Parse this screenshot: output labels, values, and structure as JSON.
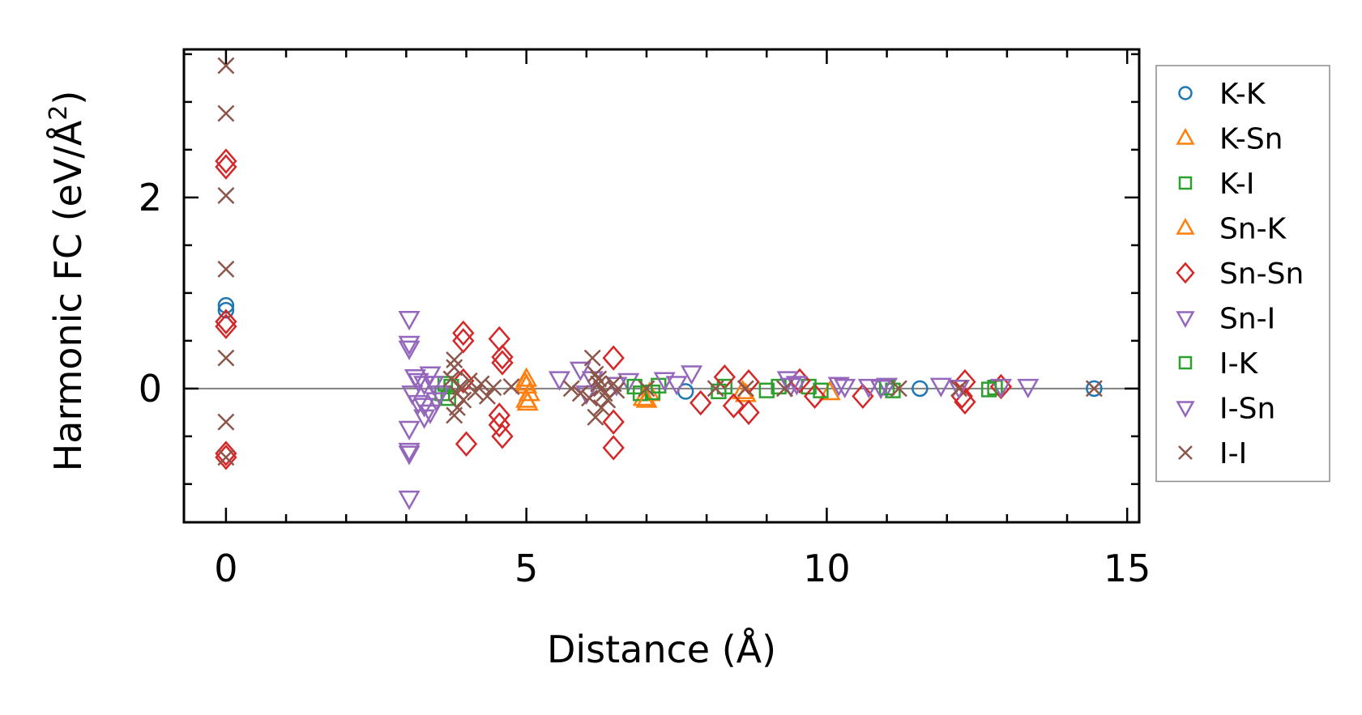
{
  "chart_data": {
    "type": "scatter",
    "title": "",
    "xlabel": "Distance (Å)",
    "ylabel_main": "Harmonic FC (eV/Å",
    "ylabel_sup": "2",
    "ylabel_close": ")",
    "xlim": [
      -0.7,
      15.2
    ],
    "ylim": [
      -1.4,
      3.55
    ],
    "xticks": [
      0,
      5,
      10,
      15
    ],
    "xtick_labels": [
      "0",
      "5",
      "10",
      "15"
    ],
    "yticks": [
      0,
      2
    ],
    "ytick_labels": [
      "0",
      "2"
    ],
    "x_minor_step": 1,
    "y_minor_step": 0.5,
    "zero_line": true,
    "legend_position": "outside-right",
    "series": [
      {
        "name": "K-K",
        "marker": "circle",
        "color": "#1f77b4",
        "x": [
          0,
          0,
          7.65,
          11.55,
          14.45
        ],
        "y": [
          0.87,
          0.82,
          -0.03,
          0.0,
          0.0
        ]
      },
      {
        "name": "K-Sn",
        "marker": "triangle-up",
        "color": "#ff7f0e",
        "x": [
          5.0,
          5.0,
          5.0,
          5.05,
          6.95,
          7.05,
          8.6
        ],
        "y": [
          0.1,
          0.03,
          -0.12,
          -0.05,
          -0.1,
          -0.05,
          -0.03
        ]
      },
      {
        "name": "K-I",
        "marker": "square",
        "color": "#2ca02c",
        "x": [
          3.65,
          3.7,
          6.9,
          7.2,
          8.3,
          9.0,
          9.7,
          11.1,
          12.8
        ],
        "y": [
          0.05,
          -0.1,
          -0.05,
          0.03,
          0.02,
          -0.02,
          0.02,
          -0.02,
          0.01
        ]
      },
      {
        "name": "Sn-K",
        "marker": "triangle-up",
        "color": "#ff7f0e",
        "x": [
          4.98,
          5.02,
          7.0,
          8.65,
          10.05
        ],
        "y": [
          0.06,
          -0.15,
          -0.12,
          -0.06,
          -0.04
        ]
      },
      {
        "name": "Sn-Sn",
        "marker": "diamond",
        "color": "#d62728",
        "x": [
          0,
          0,
          0,
          0,
          0,
          0,
          3.95,
          3.95,
          4.0,
          3.95,
          4.55,
          4.6,
          4.6,
          4.55,
          4.55,
          4.6,
          6.45,
          6.45,
          6.45,
          8.3,
          8.45,
          8.7,
          8.7,
          7.9,
          9.55,
          9.8,
          10.6,
          12.3,
          12.3,
          12.25,
          12.9
        ],
        "y": [
          2.38,
          2.32,
          0.7,
          0.65,
          -0.68,
          -0.72,
          0.58,
          0.5,
          -0.58,
          0.08,
          0.52,
          0.33,
          0.27,
          -0.28,
          -0.38,
          -0.5,
          0.32,
          -0.35,
          -0.62,
          0.12,
          -0.18,
          0.07,
          -0.25,
          -0.15,
          0.08,
          -0.08,
          -0.08,
          0.07,
          -0.14,
          -0.08,
          0.02
        ]
      },
      {
        "name": "Sn-I",
        "marker": "triangle-down",
        "color": "#9467bd",
        "x": [
          3.05,
          3.05,
          3.05,
          3.05,
          3.05,
          3.05,
          3.05,
          3.4,
          3.3,
          3.4,
          3.2,
          5.55,
          5.9,
          6.1,
          6.7,
          7.3,
          7.75,
          9.35,
          9.5,
          10.2,
          10.7,
          11.0,
          11.9,
          12.9,
          13.35
        ],
        "y": [
          0.73,
          0.47,
          0.42,
          -0.42,
          -0.65,
          -0.68,
          -1.15,
          0.15,
          0.05,
          -0.25,
          -0.15,
          0.1,
          0.2,
          0.1,
          0.08,
          0.09,
          0.16,
          0.1,
          0.05,
          0.04,
          0.02,
          0.03,
          0.03,
          0.02,
          0.02
        ]
      },
      {
        "name": "I-K",
        "marker": "square",
        "color": "#2ca02c",
        "x": [
          3.6,
          3.75,
          6.8,
          7.1,
          8.2,
          9.2,
          9.9,
          11.0,
          12.7
        ],
        "y": [
          -0.05,
          0.02,
          0.02,
          -0.04,
          -0.03,
          0.02,
          -0.02,
          0.01,
          -0.01
        ]
      },
      {
        "name": "I-Sn",
        "marker": "triangle-down",
        "color": "#9467bd",
        "x": [
          3.1,
          3.2,
          3.3,
          3.45,
          3.55,
          3.3,
          3.15,
          3.5,
          6.0,
          6.5,
          7.5,
          9.4,
          10.3,
          10.9,
          12.2
        ],
        "y": [
          -0.05,
          0.08,
          -0.18,
          0.05,
          -0.05,
          -0.3,
          0.12,
          -0.12,
          -0.05,
          0.04,
          0.05,
          0.03,
          0.02,
          0.01,
          0.01
        ]
      },
      {
        "name": "I-I",
        "marker": "x",
        "color": "#8c564b",
        "x": [
          0,
          0,
          0,
          0,
          0,
          0,
          0,
          3.8,
          3.8,
          3.75,
          3.9,
          3.85,
          3.95,
          3.85,
          3.8,
          4.05,
          4.15,
          4.25,
          4.35,
          4.45,
          4.75,
          5.75,
          5.9,
          6.05,
          6.1,
          6.15,
          6.2,
          6.25,
          6.3,
          6.35,
          6.45,
          6.5,
          6.15,
          6.25,
          6.2,
          7.0,
          8.15,
          8.65,
          9.3,
          11.2,
          12.2,
          14.45
        ],
        "y": [
          3.38,
          2.88,
          2.02,
          1.25,
          0.32,
          -0.35,
          -0.72,
          0.3,
          0.22,
          0.1,
          0.02,
          -0.05,
          -0.12,
          -0.2,
          -0.28,
          0.08,
          -0.04,
          0.05,
          -0.08,
          0.01,
          0.02,
          0.0,
          -0.05,
          -0.1,
          0.32,
          0.15,
          0.05,
          0.0,
          -0.05,
          -0.12,
          0.05,
          -0.02,
          -0.3,
          -0.2,
          0.1,
          0.0,
          0.0,
          0.0,
          0.0,
          0.0,
          0.0,
          0.0
        ]
      }
    ]
  }
}
